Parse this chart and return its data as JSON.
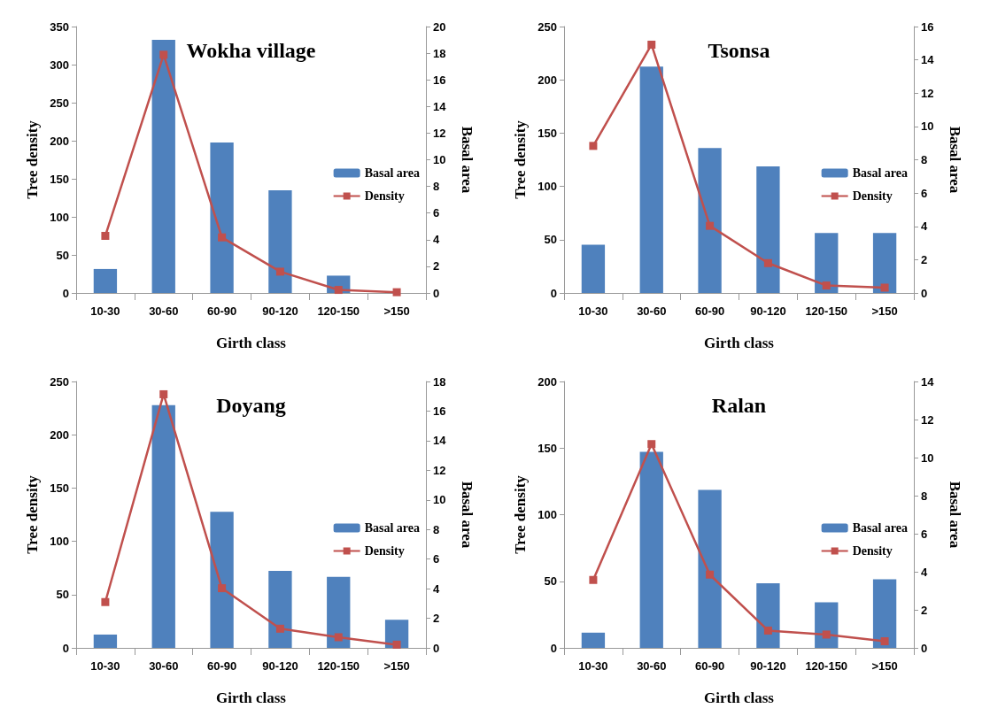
{
  "chart_data": [
    {
      "type": "bar",
      "title": "Wokha village",
      "categories": [
        "10-30",
        "30-60",
        "60-90",
        "90-120",
        "120-150",
        ">150"
      ],
      "xlabel": "Girth class",
      "ylabel": "Tree density",
      "y2label": "Basal area",
      "ylim": [
        0,
        350
      ],
      "yticks": [
        0,
        50,
        100,
        150,
        200,
        250,
        300,
        350
      ],
      "y2lim": [
        0,
        20
      ],
      "y2ticks": [
        0,
        2,
        4,
        6,
        8,
        10,
        12,
        14,
        16,
        18,
        20
      ],
      "legend": "right",
      "grid": false,
      "series": [
        {
          "name": "Basal area",
          "axis": "y2",
          "color": "#4f81bd",
          "values": [
            1.8,
            19.0,
            11.3,
            7.7,
            1.3,
            0
          ]
        },
        {
          "name": "Density",
          "type": "line",
          "axis": "y",
          "color": "#c0504d",
          "marker": "square",
          "values": [
            75,
            313,
            73,
            28,
            4,
            1
          ]
        }
      ]
    },
    {
      "type": "bar",
      "title": "Tsonsa",
      "categories": [
        "10-30",
        "30-60",
        "60-90",
        "90-120",
        "120-150",
        ">150"
      ],
      "xlabel": "Girth class",
      "ylabel": "Tree density",
      "y2label": "Basal area",
      "ylim": [
        0,
        250
      ],
      "yticks": [
        0,
        50,
        100,
        150,
        200,
        250
      ],
      "y2lim": [
        0,
        16
      ],
      "y2ticks": [
        0,
        2,
        4,
        6,
        8,
        10,
        12,
        14,
        16
      ],
      "legend": "right",
      "grid": false,
      "series": [
        {
          "name": "Basal area",
          "axis": "y2",
          "color": "#4f81bd",
          "values": [
            2.9,
            13.6,
            8.7,
            7.6,
            3.6,
            3.6
          ]
        },
        {
          "name": "Density",
          "type": "line",
          "axis": "y",
          "color": "#c0504d",
          "marker": "square",
          "values": [
            138,
            233,
            63,
            28,
            7,
            5
          ]
        }
      ]
    },
    {
      "type": "bar",
      "title": "Doyang",
      "categories": [
        "10-30",
        "30-60",
        "60-90",
        "90-120",
        "120-150",
        ">150"
      ],
      "xlabel": "Girth class",
      "ylabel": "Tree density",
      "y2label": "Basal area",
      "ylim": [
        0,
        250
      ],
      "yticks": [
        0,
        50,
        100,
        150,
        200,
        250
      ],
      "y2lim": [
        0,
        18
      ],
      "y2ticks": [
        0,
        2,
        4,
        6,
        8,
        10,
        12,
        14,
        16,
        18
      ],
      "legend": "right",
      "grid": false,
      "series": [
        {
          "name": "Basal area",
          "axis": "y2",
          "color": "#4f81bd",
          "values": [
            0.9,
            16.4,
            9.2,
            5.2,
            4.8,
            1.9
          ]
        },
        {
          "name": "Density",
          "type": "line",
          "axis": "y",
          "color": "#c0504d",
          "marker": "square",
          "values": [
            43,
            238,
            56,
            18,
            10,
            3
          ]
        }
      ]
    },
    {
      "type": "bar",
      "title": "Ralan",
      "categories": [
        "10-30",
        "30-60",
        "60-90",
        "90-120",
        "120-150",
        ">150"
      ],
      "xlabel": "Girth class",
      "ylabel": "Tree density",
      "y2label": "Basal area",
      "ylim": [
        0,
        200
      ],
      "yticks": [
        0,
        50,
        100,
        150,
        200
      ],
      "y2lim": [
        0,
        14
      ],
      "y2ticks": [
        0,
        2,
        4,
        6,
        8,
        10,
        12,
        14
      ],
      "legend": "right",
      "grid": false,
      "series": [
        {
          "name": "Basal area",
          "axis": "y2",
          "color": "#4f81bd",
          "values": [
            0.8,
            10.3,
            8.3,
            3.4,
            2.4,
            3.6
          ]
        },
        {
          "name": "Density",
          "type": "line",
          "axis": "y",
          "color": "#c0504d",
          "marker": "square",
          "values": [
            51,
            153,
            55,
            13,
            10,
            5
          ]
        }
      ]
    }
  ]
}
